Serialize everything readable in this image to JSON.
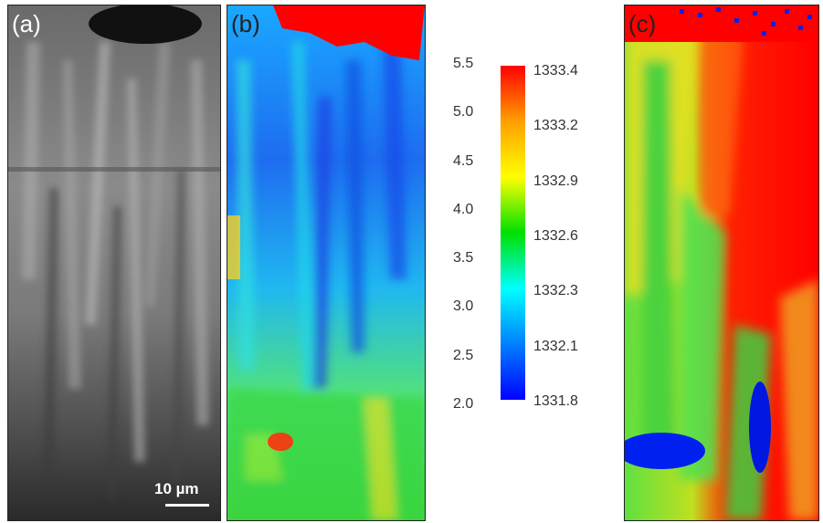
{
  "panels": {
    "a": {
      "label": "(a)",
      "scalebar": "10 µm"
    },
    "b": {
      "label": "(b)"
    },
    "c": {
      "label": "(c)"
    }
  },
  "left_scale": {
    "ticks": [
      "5.5",
      "5.0",
      "4.5",
      "4.0",
      "3.5",
      "3.0",
      "2.5",
      "2.0"
    ]
  },
  "colorbar": {
    "labels": [
      "1333.4",
      "1333.2",
      "1332.9",
      "1332.6",
      "1332.3",
      "1332.1",
      "1331.8"
    ],
    "colors": [
      "#ff0000",
      "#ffa000",
      "#ffff00",
      "#00e000",
      "#00ffff",
      "#0080ff",
      "#0000ff"
    ]
  }
}
